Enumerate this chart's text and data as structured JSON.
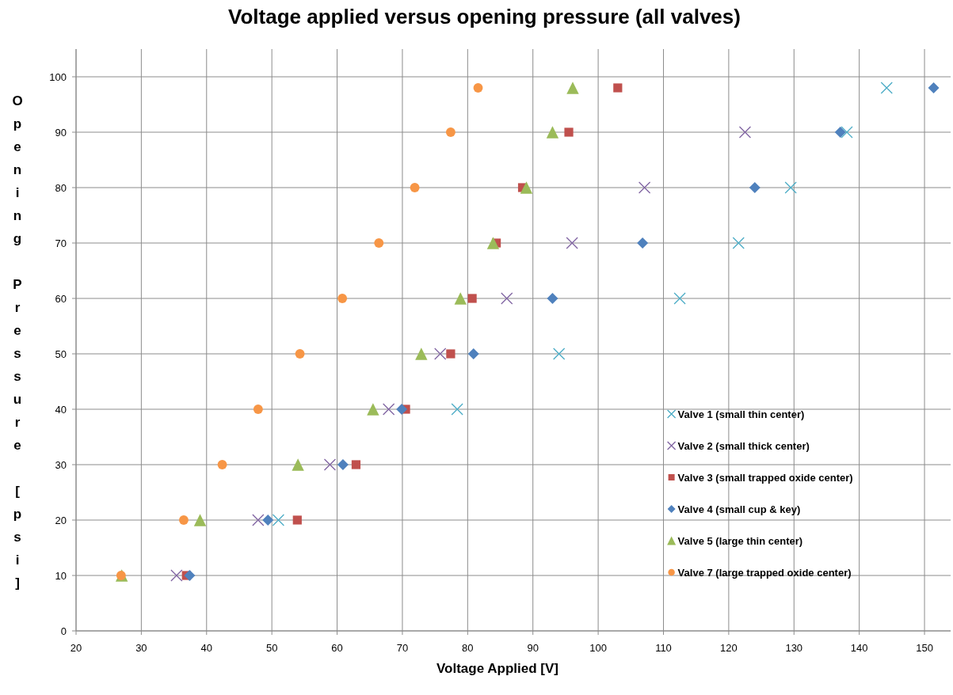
{
  "chart_data": {
    "type": "scatter",
    "title": "Voltage applied versus opening pressure (all valves)",
    "xlabel": "Voltage Applied [V]",
    "ylabel": "Opening Pressure [psi]",
    "xlim": [
      20,
      154
    ],
    "xticks": [
      20,
      30,
      40,
      50,
      60,
      70,
      80,
      90,
      100,
      110,
      120,
      130,
      140,
      150
    ],
    "ylim": [
      0,
      105
    ],
    "yticks": [
      0,
      10,
      20,
      30,
      40,
      50,
      60,
      70,
      80,
      90,
      100
    ],
    "grid": true,
    "legend": "bottom right",
    "series": [
      {
        "name": "Valve 1 (small thin center)",
        "color": "#4bacc6",
        "marker": "cross",
        "x": [
          51.0,
          78.4,
          94.0,
          112.5,
          121.5,
          129.5,
          138.1,
          144.2
        ],
        "values": [
          20,
          40,
          50,
          60,
          70,
          80,
          90,
          98
        ]
      },
      {
        "name": "Valve 2 (small thick center)",
        "color": "#8064a2",
        "marker": "cross",
        "x": [
          35.4,
          47.9,
          58.9,
          67.9,
          75.8,
          86.0,
          96.0,
          107.1,
          122.5
        ],
        "values": [
          10,
          20,
          30,
          40,
          50,
          60,
          70,
          80,
          90
        ]
      },
      {
        "name": "Valve 3 (small trapped oxide center)",
        "color": "#c0504d",
        "marker": "square",
        "x": [
          36.9,
          53.9,
          62.9,
          70.5,
          77.4,
          80.7,
          84.4,
          88.4,
          95.5,
          103.0
        ],
        "values": [
          10,
          20,
          30,
          40,
          50,
          60,
          70,
          80,
          90,
          98
        ]
      },
      {
        "name": "Valve 4 (small cup & key)",
        "color": "#4f81bd",
        "marker": "diamond",
        "x": [
          37.4,
          49.4,
          60.9,
          69.9,
          80.9,
          93.0,
          106.8,
          124.0,
          137.1,
          151.4
        ],
        "values": [
          10,
          20,
          30,
          40,
          50,
          60,
          70,
          80,
          90,
          98
        ]
      },
      {
        "name": "Valve 5 (large thin center)",
        "color": "#9bbb59",
        "marker": "triangle",
        "x": [
          27.0,
          39.0,
          54.0,
          65.5,
          72.9,
          78.9,
          83.9,
          89.0,
          93.0,
          96.1
        ],
        "values": [
          10,
          20,
          30,
          40,
          50,
          60,
          70,
          80,
          90,
          98
        ]
      },
      {
        "name": "Valve 7 (large trapped oxide center)",
        "color": "#f79646",
        "marker": "circle",
        "x": [
          26.9,
          36.5,
          42.4,
          47.9,
          54.3,
          60.8,
          66.4,
          71.9,
          77.4,
          81.6
        ],
        "values": [
          10,
          20,
          30,
          40,
          50,
          60,
          70,
          80,
          90,
          98
        ]
      }
    ]
  }
}
